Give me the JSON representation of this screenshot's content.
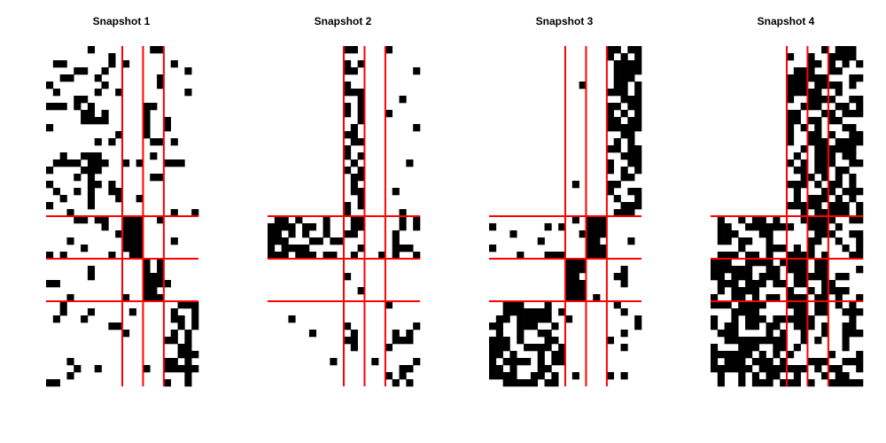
{
  "chart_data": {
    "type": "heatmap",
    "description_scale": "binary (black = 1, white = 0)",
    "rows": 48,
    "cols": 22,
    "block_boundaries": {
      "row_cuts": [
        24,
        30,
        36
      ],
      "col_cuts": [
        11,
        14,
        17
      ]
    },
    "colors": {
      "filled": "#000000",
      "empty": "#ffffff",
      "divider": "#ff0000"
    },
    "panels": [
      {
        "title": "Snapshot  1",
        "seed": 11,
        "densities": [
          [
            0.22,
            0.05,
            0.22,
            0.08
          ],
          [
            0.12,
            0.88,
            0.08,
            0.05
          ],
          [
            0.1,
            0.05,
            0.92,
            0.05
          ],
          [
            0.08,
            0.08,
            0.1,
            0.55
          ]
        ]
      },
      {
        "title": "Snapshot  2",
        "seed": 23,
        "densities": [
          [
            0.0,
            0.55,
            0.0,
            0.06
          ],
          [
            0.55,
            0.35,
            0.05,
            0.3
          ],
          [
            0.0,
            0.15,
            0.0,
            0.04
          ],
          [
            0.04,
            0.18,
            0.05,
            0.25
          ]
        ]
      },
      {
        "title": "Snapshot  3",
        "seed": 37,
        "densities": [
          [
            0.0,
            0.02,
            0.0,
            0.62
          ],
          [
            0.1,
            0.02,
            0.92,
            0.12
          ],
          [
            0.0,
            0.95,
            0.02,
            0.06
          ],
          [
            0.62,
            0.05,
            0.02,
            0.1
          ]
        ]
      },
      {
        "title": "Snapshot  4",
        "seed": 53,
        "densities": [
          [
            0.0,
            0.55,
            0.55,
            0.55
          ],
          [
            0.55,
            0.4,
            0.55,
            0.45
          ],
          [
            0.62,
            0.62,
            0.55,
            0.5
          ],
          [
            0.6,
            0.55,
            0.5,
            0.5
          ]
        ]
      }
    ]
  }
}
